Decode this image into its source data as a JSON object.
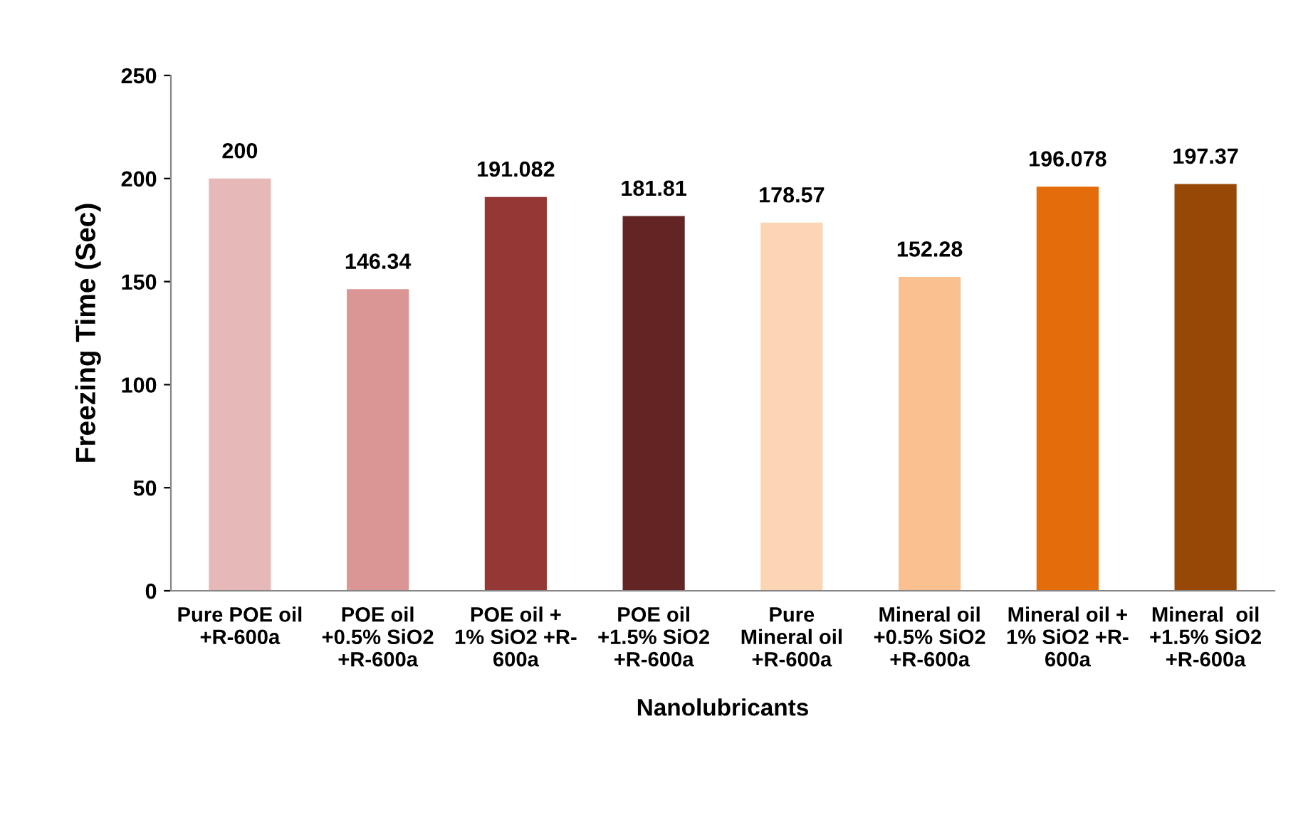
{
  "chart_data": {
    "type": "bar",
    "xlabel": "Nanolubricants",
    "ylabel": "Freezing Time (Sec)",
    "categories": [
      "Pure POE oil\n+R-600a",
      "POE oil\n+0.5% SiO2\n+R-600a",
      "POE oil +\n1% SiO2 +R-\n600a",
      "POE oil\n+1.5% SiO2\n+R-600a",
      "Pure\nMineral oil\n+R-600a",
      "Mineral oil\n+0.5% SiO2\n+R-600a",
      "Mineral oil +\n1% SiO2 +R-\n600a",
      "Mineral  oil\n+1.5% SiO2\n+R-600a"
    ],
    "values": [
      200,
      146.34,
      191.082,
      181.81,
      178.57,
      152.28,
      196.078,
      197.37
    ],
    "colors": [
      "#e6b8b7",
      "#da9694",
      "#953735",
      "#632523",
      "#fcd5b5",
      "#fac090",
      "#e46c0a",
      "#974806"
    ],
    "ylim": [
      0,
      250
    ],
    "yticks": [
      0,
      50,
      100,
      150,
      200,
      250
    ],
    "grid": false,
    "data_labels": true
  }
}
